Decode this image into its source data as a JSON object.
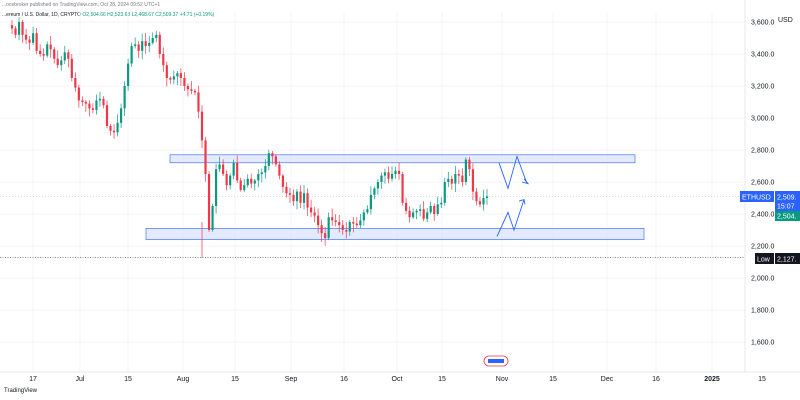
{
  "header": {
    "publisher": "...ocebroker published on TradingView.com, Oct 28, 2024 09:52 UTC+1",
    "symbol": "...ereum / U.S. Dollar, 1D, CRYPTO",
    "ohlc": "O2,504.66  H2,523.63  L2,468.67  C2,509.37  +4.71 (+0.19%)"
  },
  "footer": {
    "brand": "TradingView"
  },
  "axis": {
    "currency": "USD",
    "price_labels": [
      "3,600.0",
      "3,400.0",
      "3,200.0",
      "3,000.0",
      "2,800.0",
      "2,600.0",
      "2,400.0",
      "2,200.0",
      "2,000.0",
      "1,800.0",
      "1,600.0"
    ],
    "time_labels": [
      "17",
      "Jul",
      "15",
      "Aug",
      "15",
      "Sep",
      "16",
      "Oct",
      "15",
      "Nov",
      "15",
      "Dec",
      "16",
      "2025",
      "15"
    ]
  },
  "markers": {
    "symbol_tag": "ETHUSD",
    "last_price": "2,509.",
    "countdown": "15:07",
    "ask_price": "2,504.",
    "low_label": "Low",
    "low_value": "2,127."
  },
  "colors": {
    "up": "#089981",
    "down": "#f23645",
    "zone_fill": "#dbe3ff",
    "zone_stroke": "#2962ff",
    "projection": "#2962ff"
  },
  "chart_data": {
    "type": "candlestick",
    "symbol": "ETHUSD",
    "interval": "1D",
    "ylim": [
      1520,
      3650
    ],
    "grid": true,
    "xlabel": "",
    "ylabel": "",
    "candles_close": [
      3560,
      3520,
      3600,
      3520,
      3490,
      3470,
      3530,
      3420,
      3400,
      3390,
      3460,
      3430,
      3370,
      3330,
      3360,
      3410,
      3370,
      3250,
      3190,
      3110,
      3100,
      3090,
      3060,
      3050,
      3110,
      3120,
      3080,
      2950,
      2920,
      2910,
      2970,
      3060,
      3200,
      3340,
      3450,
      3460,
      3420,
      3480,
      3450,
      3470,
      3500,
      3520,
      3400,
      3330,
      3250,
      3240,
      3260,
      3280,
      3250,
      3200,
      3180,
      3170,
      3160,
      3040,
      2860,
      2650,
      2300,
      2450,
      2680,
      2710,
      2650,
      2580,
      2640,
      2720,
      2610,
      2550,
      2580,
      2620,
      2590,
      2610,
      2650,
      2660,
      2700,
      2780,
      2760,
      2710,
      2640,
      2570,
      2530,
      2520,
      2480,
      2540,
      2470,
      2530,
      2440,
      2410,
      2390,
      2330,
      2280,
      2250,
      2380,
      2360,
      2350,
      2330,
      2300,
      2290,
      2350,
      2340,
      2330,
      2360,
      2410,
      2430,
      2520,
      2560,
      2600,
      2640,
      2660,
      2620,
      2650,
      2670,
      2650,
      2470,
      2420,
      2380,
      2410,
      2420,
      2430,
      2370,
      2410,
      2450,
      2400,
      2460,
      2470,
      2600,
      2620,
      2590,
      2650,
      2640,
      2600,
      2740,
      2680,
      2540,
      2480,
      2460,
      2500,
      2510
    ],
    "support_zone": [
      2240,
      2310
    ],
    "resistance_zone": [
      2720,
      2770
    ],
    "last_close": 2509.37,
    "low": 2127
  }
}
